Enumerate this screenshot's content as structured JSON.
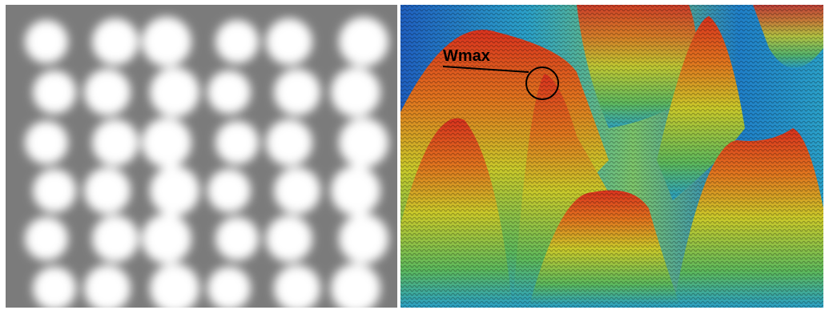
{
  "annotation": {
    "label": "Wmax"
  }
}
